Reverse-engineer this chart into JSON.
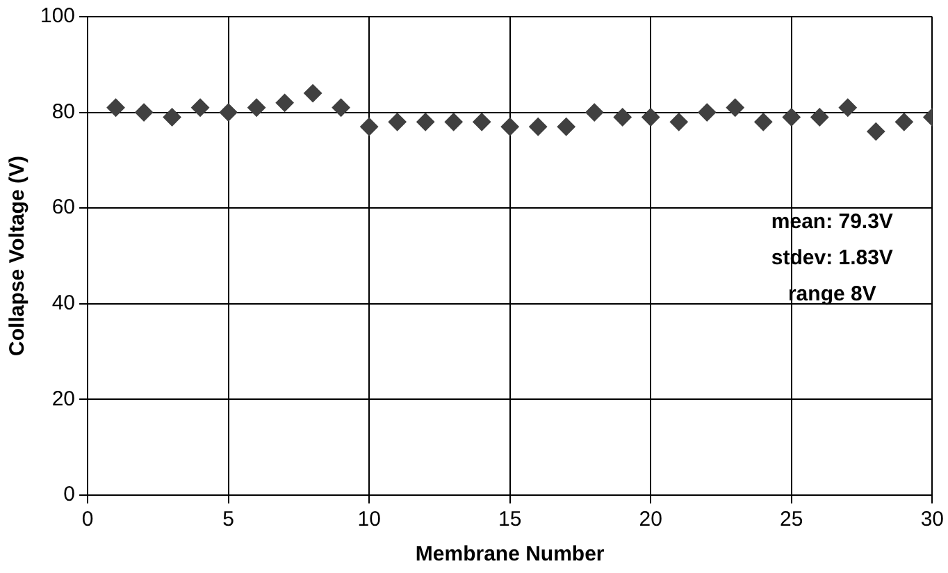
{
  "chart_data": {
    "type": "scatter",
    "xlabel": "Membrane Number",
    "ylabel": "Collapse Voltage (V)",
    "x": [
      1,
      2,
      3,
      4,
      5,
      6,
      7,
      8,
      9,
      10,
      11,
      12,
      13,
      14,
      15,
      16,
      17,
      18,
      19,
      20,
      21,
      22,
      23,
      24,
      25,
      26,
      27,
      28,
      29,
      30
    ],
    "values": [
      81,
      80,
      79,
      81,
      80,
      81,
      82,
      84,
      81,
      77,
      78,
      78,
      78,
      78,
      77,
      77,
      77,
      80,
      79,
      79,
      78,
      80,
      81,
      78,
      79,
      79,
      81,
      76,
      78,
      79
    ],
    "color": "#404040",
    "marker": "diamond",
    "grid": true,
    "legend": false,
    "xlim": [
      0,
      30
    ],
    "xticks": [
      0,
      5,
      10,
      15,
      20,
      25,
      30
    ],
    "ylim": [
      0,
      100
    ],
    "yticks": [
      0,
      20,
      40,
      60,
      80,
      100
    ],
    "annotations": [
      "mean: 79.3V",
      "stdev: 1.83V",
      "range 8V"
    ]
  }
}
